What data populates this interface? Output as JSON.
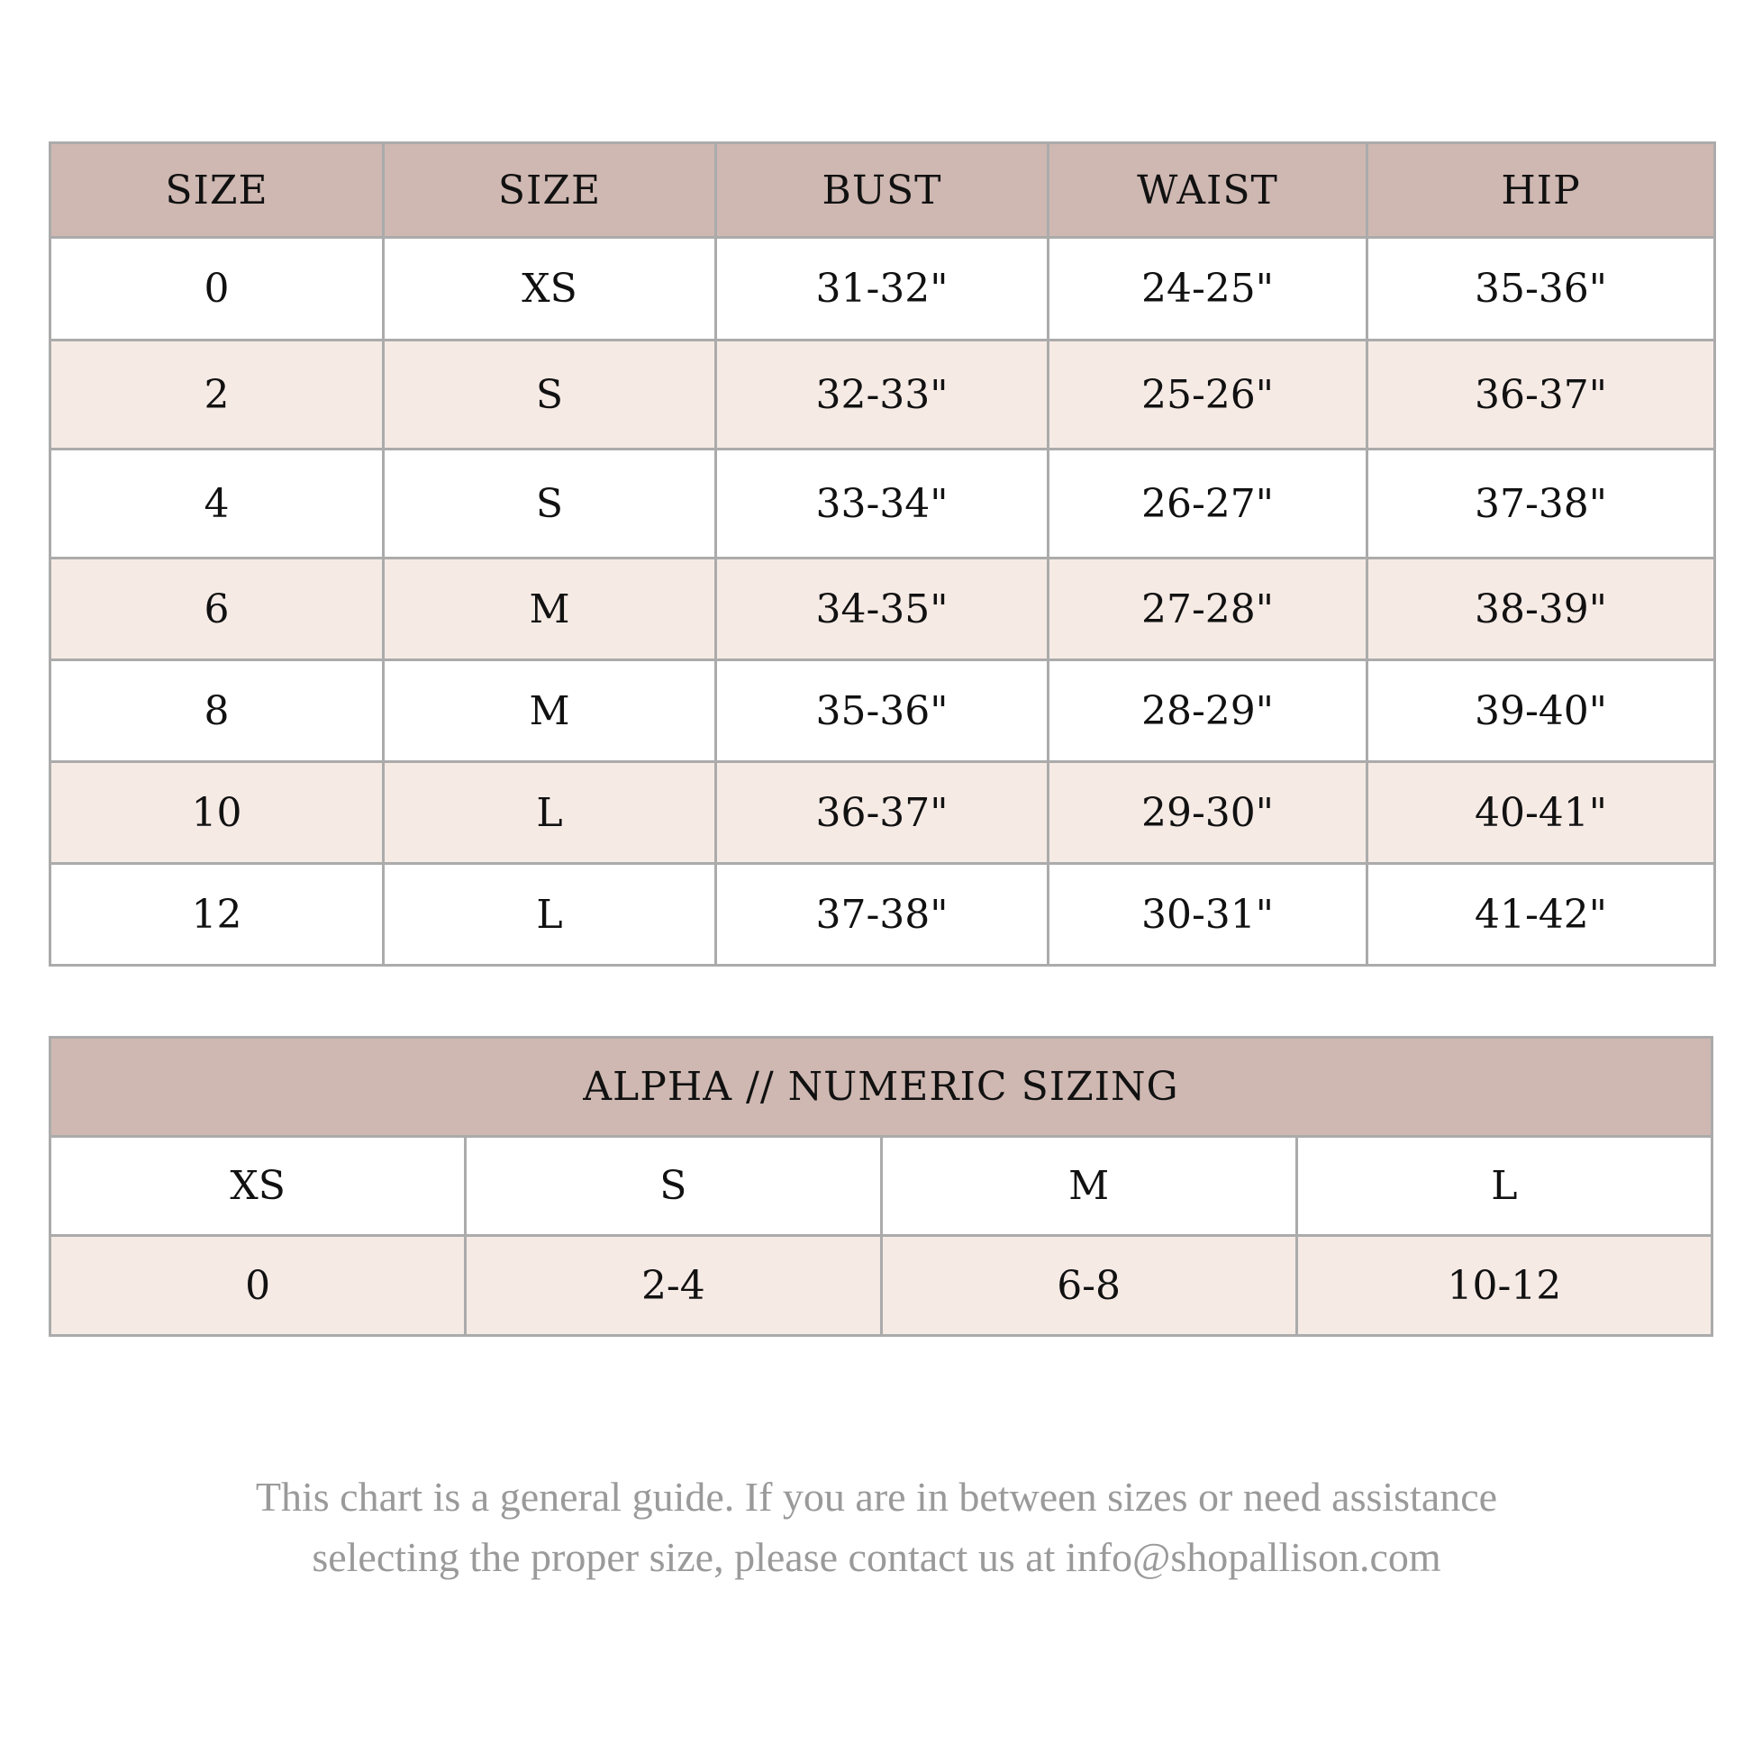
{
  "size_chart": {
    "headers": [
      "SIZE",
      "SIZE",
      "BUST",
      "WAIST",
      "HIP"
    ],
    "rows": [
      [
        "0",
        "XS",
        "31-32\"",
        "24-25\"",
        "35-36\""
      ],
      [
        "2",
        "S",
        "32-33\"",
        "25-26\"",
        "36-37\""
      ],
      [
        "4",
        "S",
        "33-34\"",
        "26-27\"",
        "37-38\""
      ],
      [
        "6",
        "M",
        "34-35\"",
        "27-28\"",
        "38-39\""
      ],
      [
        "8",
        "M",
        "35-36\"",
        "28-29\"",
        "39-40\""
      ],
      [
        "10",
        "L",
        "36-37\"",
        "29-30\"",
        "40-41\""
      ],
      [
        "12",
        "L",
        "37-38\"",
        "30-31\"",
        "41-42\""
      ]
    ]
  },
  "alpha_numeric": {
    "title": "ALPHA // NUMERIC SIZING",
    "alpha": [
      "XS",
      "S",
      "M",
      "L"
    ],
    "numeric": [
      "0",
      "2-4",
      "6-8",
      "10-12"
    ]
  },
  "note": {
    "line1": "This chart is a general guide. If you are in between sizes or need assistance",
    "line2": "selecting the proper size, please contact us at info@shopallison.com"
  },
  "colors": {
    "header": "#cfb8b2",
    "alt_row": "#f6eae5",
    "border": "#ababab",
    "note": "#9a9a9a"
  }
}
